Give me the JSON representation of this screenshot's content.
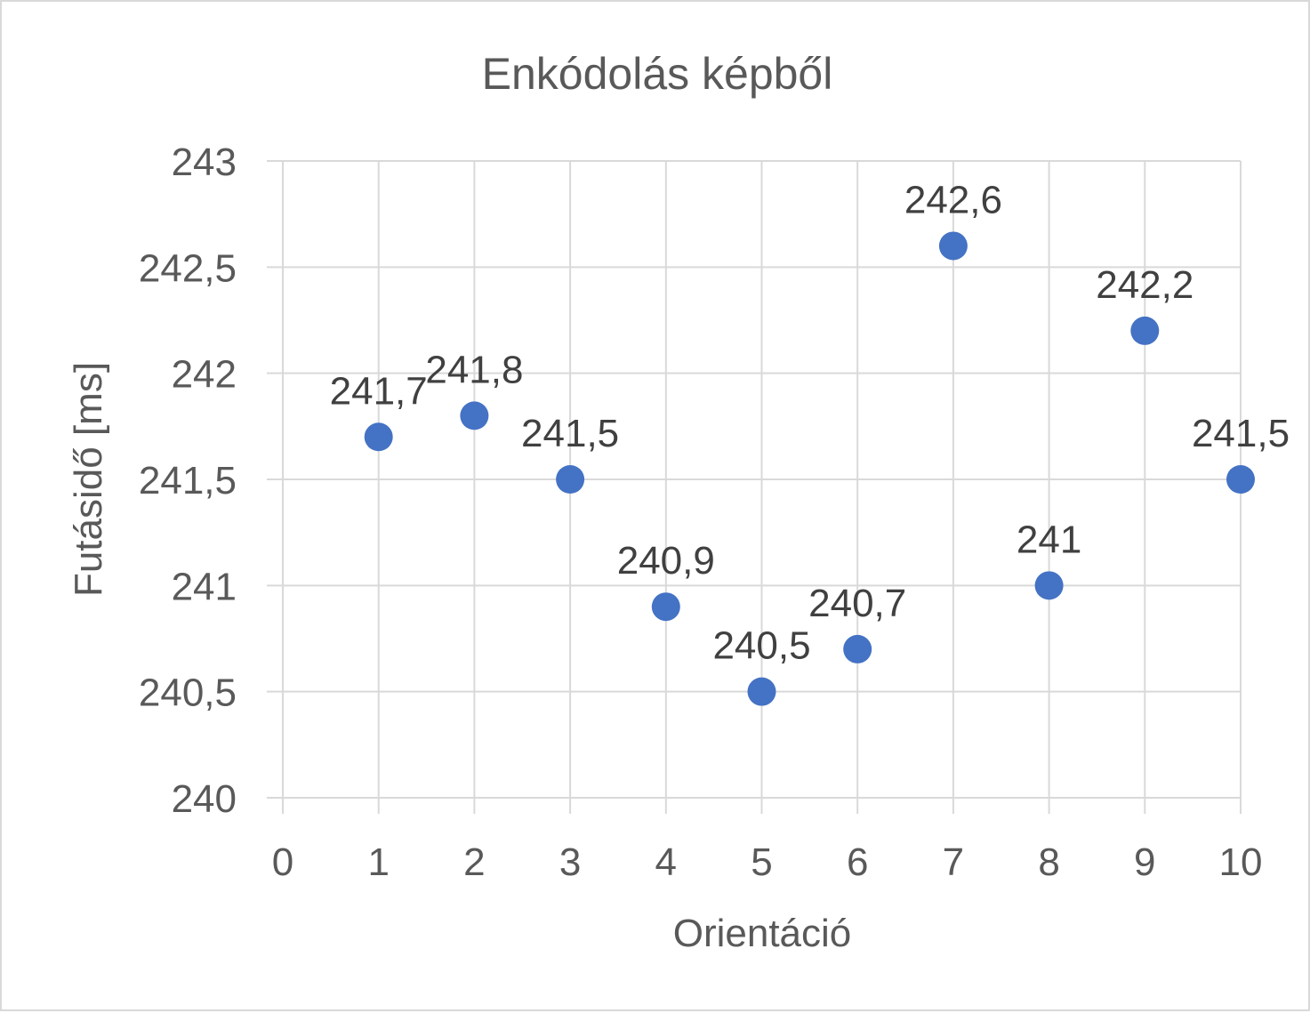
{
  "chart_data": {
    "type": "scatter",
    "title": "Enkódolás képből",
    "xlabel": "Orientáció",
    "ylabel": "Futásidő [ms]",
    "xlim": [
      0,
      10
    ],
    "ylim": [
      240,
      243
    ],
    "x_ticks": [
      0,
      1,
      2,
      3,
      4,
      5,
      6,
      7,
      8,
      9,
      10
    ],
    "x_tick_labels": [
      "0",
      "1",
      "2",
      "3",
      "4",
      "5",
      "6",
      "7",
      "8",
      "9",
      "10"
    ],
    "y_ticks": [
      240,
      240.5,
      241,
      241.5,
      242,
      242.5,
      243
    ],
    "y_tick_labels": [
      "240",
      "240,5",
      "241",
      "241,5",
      "242",
      "242,5",
      "243"
    ],
    "grid": true,
    "legend": "none",
    "marker_color": "#4472C4",
    "series": [
      {
        "x": [
          1,
          2,
          3,
          4,
          5,
          6,
          7,
          8,
          9,
          10
        ],
        "y": [
          241.7,
          241.8,
          241.5,
          240.9,
          240.5,
          240.7,
          242.6,
          241.0,
          242.2,
          241.5
        ],
        "labels": [
          "241,7",
          "241,8",
          "241,5",
          "240,9",
          "240,5",
          "240,7",
          "242,6",
          "241",
          "242,2",
          "241,5"
        ]
      }
    ]
  }
}
